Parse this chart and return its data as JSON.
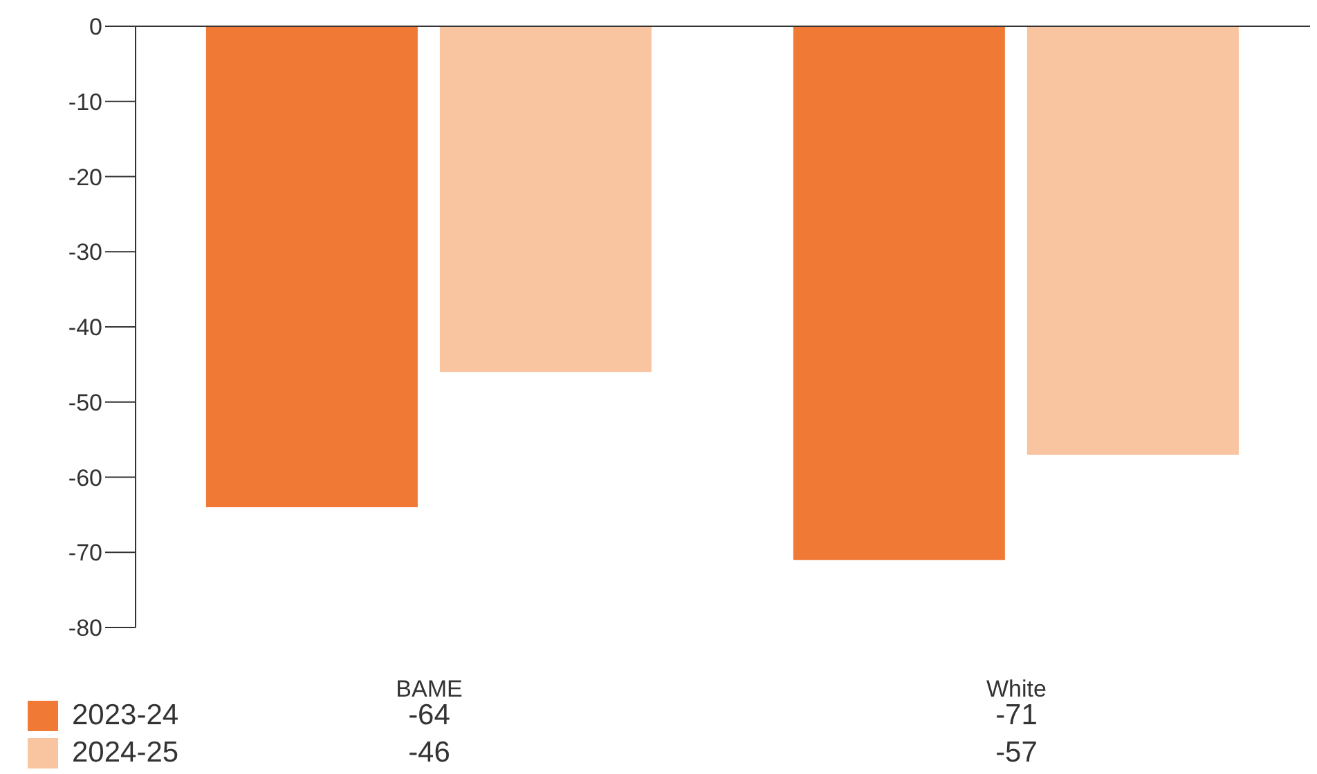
{
  "chart_data": {
    "type": "bar",
    "categories": [
      "BAME",
      "White"
    ],
    "series": [
      {
        "name": "2023-24",
        "color": "#f07935",
        "values": [
          -64,
          -71
        ]
      },
      {
        "name": "2024-25",
        "color": "#f9c4a0",
        "values": [
          -46,
          -57
        ]
      }
    ],
    "ylim": [
      -80,
      0
    ],
    "yticks": [
      0,
      -10,
      -20,
      -30,
      -40,
      -50,
      -60,
      -70,
      -80
    ],
    "grid": false,
    "legend": "bottom",
    "data_labels": true
  }
}
